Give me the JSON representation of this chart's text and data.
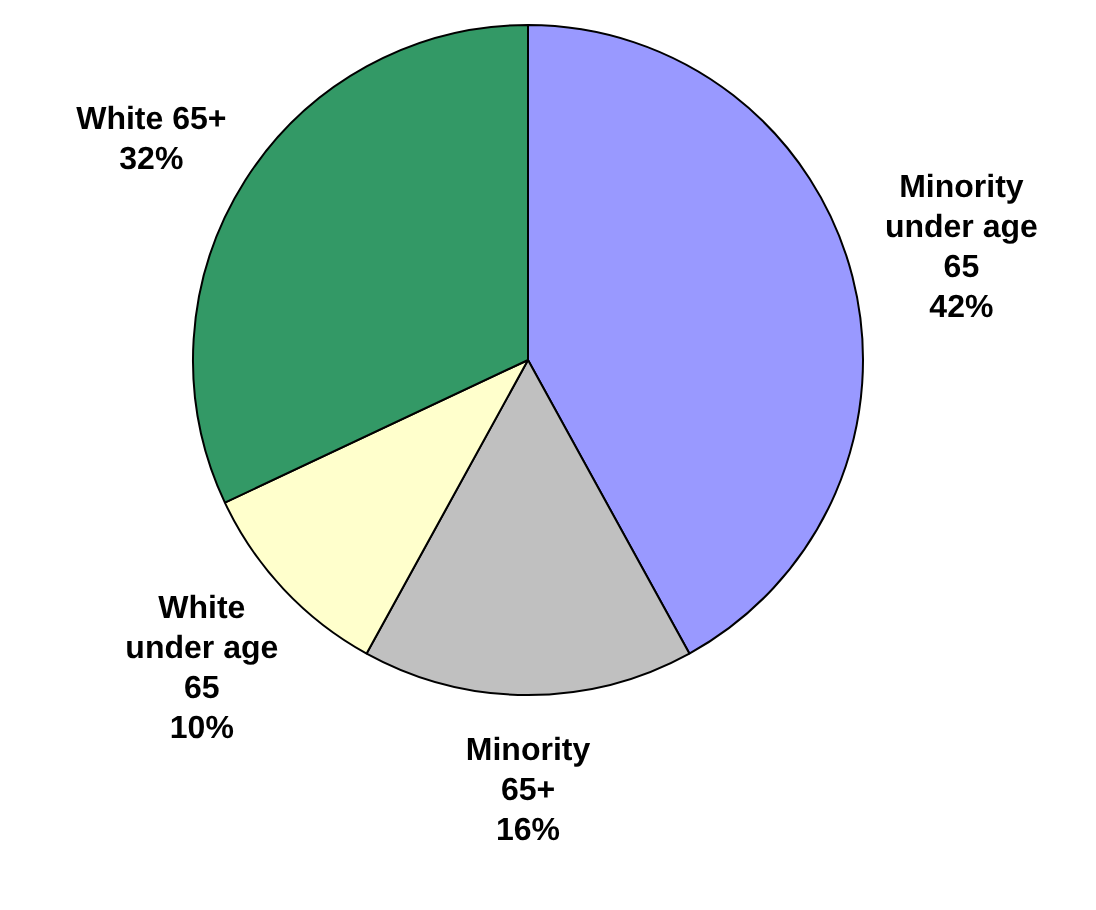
{
  "chart_data": {
    "type": "pie",
    "categories": [
      "Minority under age 65",
      "Minority 65+",
      "White under age 65",
      "White 65+"
    ],
    "values": [
      42,
      16,
      10,
      32
    ],
    "colors": [
      "#9999ff",
      "#c0c0c0",
      "#ffffcc",
      "#339966"
    ],
    "value_labels": [
      "42%",
      "16%",
      "10%",
      "32%"
    ],
    "legend": false
  }
}
